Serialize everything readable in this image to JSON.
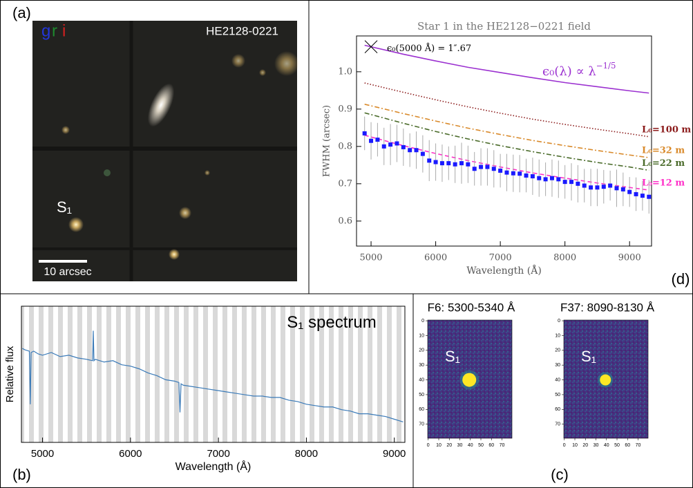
{
  "chart_data": [
    {
      "type": "image",
      "panel": "(a)",
      "bands": [
        {
          "name": "g",
          "color": "#2236d8"
        },
        {
          "name": "r",
          "color": "#1e8a2e"
        },
        {
          "name": "i",
          "color": "#d42020"
        }
      ],
      "title": "HE2128-0221",
      "source_label": "S₁",
      "scale_bar": "10 arcsec"
    },
    {
      "type": "line",
      "panel": "(d)",
      "title": "Star 1 in the HE2128−0221 field",
      "xlabel": "Wavelength (Å)",
      "ylabel": "FWHM (arcsec)",
      "xlim": [
        4775,
        9340
      ],
      "ylim": [
        0.533,
        1.096
      ],
      "xticks": [
        5000,
        6000,
        7000,
        8000,
        9000
      ],
      "yticks": [
        0.6,
        0.7,
        0.8,
        0.9,
        {
          "value": 1,
          "label": "1.0"
        }
      ],
      "x": [
        4900,
        5500,
        6000,
        6500,
        7000,
        7500,
        8000,
        8500,
        9000,
        9300
      ],
      "series": [
        {
          "color": "#9b30d0",
          "dash": "solid",
          "values": [
            1.071,
            1.047,
            1.029,
            1.012,
            0.998,
            0.984,
            0.971,
            0.96,
            0.949,
            0.943
          ]
        },
        {
          "name": "L₀=100 m",
          "color": "#8b1a1a",
          "dash": "dotted",
          "values": [
            0.97,
            0.945,
            0.925,
            0.906,
            0.889,
            0.873,
            0.859,
            0.846,
            0.834,
            0.826
          ]
        },
        {
          "name": "L₀=32 m",
          "color": "#d98a2b",
          "dash": "dashdot",
          "values": [
            0.913,
            0.888,
            0.868,
            0.849,
            0.832,
            0.816,
            0.802,
            0.789,
            0.777,
            0.77
          ]
        },
        {
          "name": "L₀=22 m",
          "color": "#4a6b2a",
          "dash": "dashdot",
          "values": [
            0.89,
            0.862,
            0.84,
            0.82,
            0.802,
            0.786,
            0.771,
            0.757,
            0.745,
            0.736
          ]
        },
        {
          "name": "L₀=12 m",
          "color": "#ff2fc8",
          "dash": "dashed",
          "values": [
            0.83,
            0.802,
            0.781,
            0.762,
            0.745,
            0.729,
            0.715,
            0.702,
            0.69,
            0.683
          ]
        },
        {
          "color": "#1a1aff",
          "marker": "square",
          "x": [
            4900,
            5000,
            5100,
            5200,
            5300,
            5400,
            5500,
            5600,
            5700,
            5800,
            5900,
            6000,
            6100,
            6200,
            6300,
            6400,
            6500,
            6600,
            6700,
            6800,
            6900,
            7000,
            7100,
            7200,
            7300,
            7400,
            7500,
            7600,
            7700,
            7800,
            7900,
            8000,
            8100,
            8200,
            8300,
            8400,
            8500,
            8600,
            8700,
            8800,
            8900,
            9000,
            9100,
            9200,
            9300
          ],
          "values": [
            0.835,
            0.815,
            0.818,
            0.8,
            0.805,
            0.808,
            0.798,
            0.79,
            0.79,
            0.78,
            0.762,
            0.758,
            0.755,
            0.755,
            0.752,
            0.755,
            0.752,
            0.74,
            0.745,
            0.745,
            0.74,
            0.735,
            0.73,
            0.728,
            0.727,
            0.722,
            0.72,
            0.715,
            0.712,
            0.715,
            0.712,
            0.705,
            0.705,
            0.7,
            0.695,
            0.69,
            0.69,
            0.692,
            0.695,
            0.688,
            0.685,
            0.678,
            0.672,
            0.668,
            0.665
          ],
          "errors": [
            0.045,
            0.05,
            0.045,
            0.05,
            0.055,
            0.05,
            0.05,
            0.045,
            0.05,
            0.05,
            0.055,
            0.05,
            0.05,
            0.045,
            0.05,
            0.055,
            0.05,
            0.045,
            0.05,
            0.05,
            0.05,
            0.045,
            0.05,
            0.05,
            0.05,
            0.045,
            0.05,
            0.05,
            0.045,
            0.05,
            0.05,
            0.045,
            0.05,
            0.05,
            0.045,
            0.05,
            0.05,
            0.045,
            0.04,
            0.05,
            0.045,
            0.04,
            0.045,
            0.04,
            0.045
          ]
        }
      ],
      "annotations": [
        {
          "text": "ϵ₀(5000 Å) = 1″.67",
          "color": "#000000",
          "anchor": {
            "x": 5000,
            "y": 1.067
          }
        },
        {
          "text": "ϵ₀(λ) ∝ λ",
          "sup": "−1/5",
          "color": "#9b30d0"
        }
      ]
    },
    {
      "type": "line",
      "panel": "(b)",
      "xlabel": "Wavelength (Å)",
      "ylabel": "Relative flux",
      "xlim": [
        4760,
        9120
      ],
      "ylim": [
        0,
        1
      ],
      "xticks": [
        5000,
        6000,
        7000,
        8000,
        9000
      ],
      "band_stripes": true,
      "x": [
        4770,
        4800,
        4850,
        4861,
        4870,
        4900,
        4950,
        5000,
        5100,
        5200,
        5300,
        5400,
        5500,
        5570,
        5577,
        5585,
        5600,
        5700,
        5800,
        5900,
        6000,
        6100,
        6200,
        6300,
        6400,
        6500,
        6550,
        6563,
        6575,
        6600,
        6700,
        6800,
        6900,
        7000,
        7100,
        7200,
        7300,
        7400,
        7500,
        7600,
        7700,
        7800,
        7900,
        8000,
        8100,
        8200,
        8300,
        8400,
        8500,
        8600,
        8700,
        8800,
        8900,
        9000,
        9050,
        9100
      ],
      "series": [
        {
          "color": "#3a7ab8",
          "dash": "solid",
          "values": [
            0.69,
            0.68,
            0.67,
            0.28,
            0.66,
            0.67,
            0.65,
            0.64,
            0.66,
            0.63,
            0.64,
            0.62,
            0.61,
            0.6,
            0.82,
            0.6,
            0.61,
            0.59,
            0.6,
            0.57,
            0.56,
            0.54,
            0.51,
            0.49,
            0.46,
            0.45,
            0.44,
            0.22,
            0.43,
            0.42,
            0.41,
            0.4,
            0.39,
            0.38,
            0.37,
            0.36,
            0.35,
            0.34,
            0.34,
            0.33,
            0.33,
            0.31,
            0.3,
            0.28,
            0.27,
            0.26,
            0.26,
            0.24,
            0.23,
            0.21,
            0.21,
            0.2,
            0.19,
            0.17,
            0.16,
            0.15
          ]
        }
      ],
      "annotations": [
        {
          "text": "S₁ spectrum",
          "color": "#000000"
        }
      ]
    },
    {
      "type": "cutout",
      "panel": "(c)",
      "title": "F6: 5300-5340 Å",
      "source_label": "S₁",
      "xlim": [
        -0.5,
        79.5
      ],
      "ylim": [
        -0.5,
        79.5
      ],
      "y_inverted": true,
      "xticks": [
        0,
        10,
        20,
        30,
        40,
        50,
        60,
        70
      ],
      "yticks": [
        0,
        10,
        20,
        30,
        40,
        50,
        60,
        70
      ],
      "source": {
        "x": 39,
        "y": 40
      }
    },
    {
      "type": "cutout",
      "title": "F37: 8090-8130 Å",
      "source_label": "S₁",
      "xlim": [
        -0.5,
        79.5
      ],
      "ylim": [
        -0.5,
        79.5
      ],
      "y_inverted": true,
      "xticks": [
        0,
        10,
        20,
        30,
        40,
        50,
        60,
        70
      ],
      "yticks": [
        0,
        10,
        20,
        30,
        40,
        50,
        60,
        70
      ],
      "source": {
        "x": 39,
        "y": 40
      }
    }
  ]
}
